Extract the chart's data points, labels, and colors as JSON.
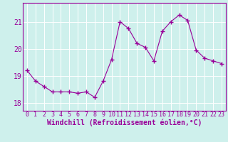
{
  "x": [
    0,
    1,
    2,
    3,
    4,
    5,
    6,
    7,
    8,
    9,
    10,
    11,
    12,
    13,
    14,
    15,
    16,
    17,
    18,
    19,
    20,
    21,
    22,
    23
  ],
  "y": [
    19.2,
    18.8,
    18.6,
    18.4,
    18.4,
    18.4,
    18.35,
    18.4,
    18.2,
    18.8,
    19.6,
    21.0,
    20.75,
    20.2,
    20.05,
    19.55,
    20.65,
    21.0,
    21.25,
    21.05,
    19.95,
    19.65,
    19.55,
    19.45
  ],
  "line_color": "#990099",
  "marker": "+",
  "marker_size": 4,
  "bg_color": "#cef0ec",
  "grid_color": "#ffffff",
  "xlabel": "Windchill (Refroidissement éolien,°C)",
  "xlabel_fontsize": 7,
  "tick_fontsize": 6,
  "ylabel_ticks": [
    18,
    19,
    20,
    21
  ],
  "xtick_labels": [
    "0",
    "1",
    "2",
    "3",
    "4",
    "5",
    "6",
    "7",
    "8",
    "9",
    "10",
    "11",
    "12",
    "13",
    "14",
    "15",
    "16",
    "17",
    "18",
    "19",
    "20",
    "21",
    "22",
    "23"
  ],
  "ylim": [
    17.7,
    21.7
  ],
  "xlim": [
    -0.5,
    23.5
  ],
  "spine_color": "#990099"
}
